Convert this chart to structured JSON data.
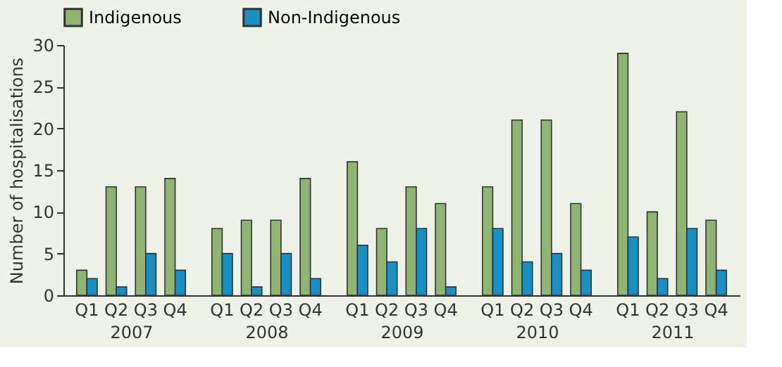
{
  "chart_data": {
    "type": "bar",
    "ylabel": "Number of hospitalisations",
    "categories": [
      "Q1",
      "Q2",
      "Q3",
      "Q4",
      "Q1",
      "Q2",
      "Q3",
      "Q4",
      "Q1",
      "Q2",
      "Q3",
      "Q4",
      "Q1",
      "Q2",
      "Q3",
      "Q4",
      "Q1",
      "Q2",
      "Q3",
      "Q4"
    ],
    "annotations": [
      "2007",
      "2008",
      "2009",
      "2010",
      "2011"
    ],
    "series": [
      {
        "name": "Indigenous",
        "color": "#8fb573",
        "values": [
          3,
          13,
          13,
          14,
          8,
          9,
          9,
          14,
          16,
          8,
          13,
          11,
          13,
          21,
          21,
          11,
          29,
          10,
          22,
          9
        ]
      },
      {
        "name": "Non-Indigenous",
        "color": "#1a8fc4",
        "values": [
          2,
          1,
          5,
          3,
          5,
          1,
          5,
          2,
          6,
          4,
          8,
          1,
          8,
          4,
          5,
          3,
          7,
          2,
          8,
          3
        ]
      }
    ],
    "ylim": [
      0,
      30
    ],
    "yticks": [
      0,
      5,
      10,
      15,
      20,
      25,
      30
    ],
    "grid": false,
    "legend": "top"
  }
}
